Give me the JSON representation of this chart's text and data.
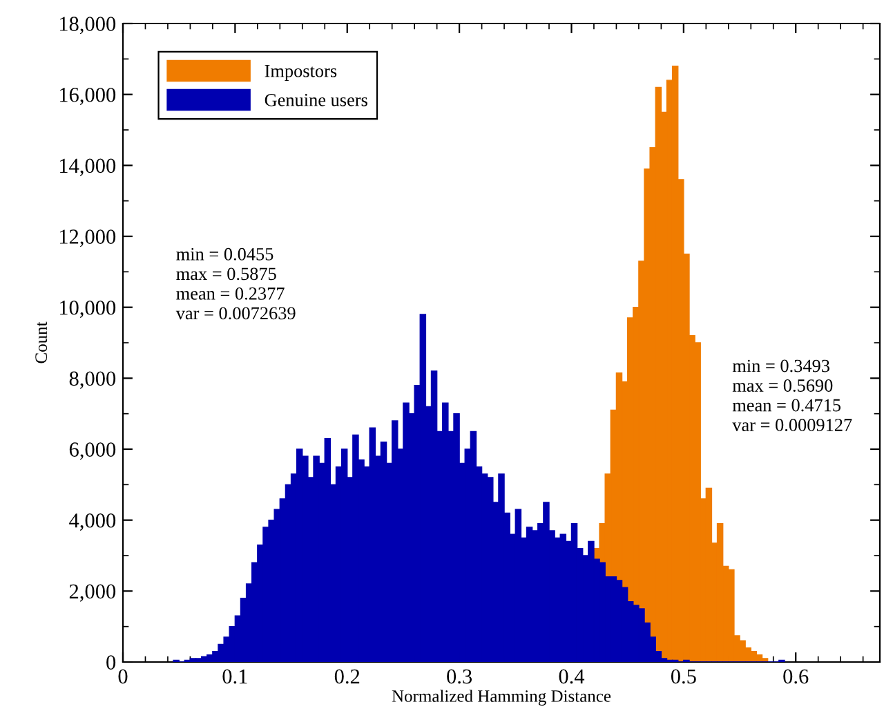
{
  "chart_data": {
    "type": "histogram",
    "xlabel": "Normalized Hamming Distance",
    "ylabel": "Count",
    "xlim": [
      0,
      0.675
    ],
    "ylim": [
      0,
      18000
    ],
    "xticks": [
      0,
      {
        "value": 0.02,
        "label": null
      },
      {
        "value": 0.04,
        "label": null
      },
      {
        "value": 0.06,
        "label": null
      },
      {
        "value": 0.08,
        "label": null
      },
      0.1,
      {
        "value": 0.12,
        "label": null
      },
      {
        "value": 0.14,
        "label": null
      },
      {
        "value": 0.16,
        "label": null
      },
      {
        "value": 0.18,
        "label": null
      },
      0.2,
      {
        "value": 0.22,
        "label": null
      },
      {
        "value": 0.24,
        "label": null
      },
      {
        "value": 0.26,
        "label": null
      },
      {
        "value": 0.28,
        "label": null
      },
      0.3,
      {
        "value": 0.32,
        "label": null
      },
      {
        "value": 0.34,
        "label": null
      },
      {
        "value": 0.36,
        "label": null
      },
      {
        "value": 0.38,
        "label": null
      },
      0.4,
      {
        "value": 0.42,
        "label": null
      },
      {
        "value": 0.44,
        "label": null
      },
      {
        "value": 0.46,
        "label": null
      },
      {
        "value": 0.48,
        "label": null
      },
      0.5,
      {
        "value": 0.52,
        "label": null
      },
      {
        "value": 0.54,
        "label": null
      },
      {
        "value": 0.56,
        "label": null
      },
      {
        "value": 0.58,
        "label": null
      },
      0.6,
      {
        "value": 0.62,
        "label": null
      },
      {
        "value": 0.64,
        "label": null
      },
      {
        "value": 0.66,
        "label": null
      }
    ],
    "yticks": [
      0,
      {
        "value": 1000,
        "label": null
      },
      {
        "value": 2000,
        "label": "2,000"
      },
      {
        "value": 3000,
        "label": null
      },
      {
        "value": 4000,
        "label": "4,000"
      },
      {
        "value": 5000,
        "label": null
      },
      {
        "value": 6000,
        "label": "6,000"
      },
      {
        "value": 7000,
        "label": null
      },
      {
        "value": 8000,
        "label": "8,000"
      },
      {
        "value": 9000,
        "label": null
      },
      {
        "value": 10000,
        "label": "10,000"
      },
      {
        "value": 11000,
        "label": null
      },
      {
        "value": 12000,
        "label": "12,000"
      },
      {
        "value": 13000,
        "label": null
      },
      {
        "value": 14000,
        "label": "14,000"
      },
      {
        "value": 15000,
        "label": null
      },
      {
        "value": 16000,
        "label": "16,000"
      },
      {
        "value": 17000,
        "label": null
      },
      {
        "value": 18000,
        "label": "18,000"
      }
    ],
    "grid": false,
    "legend": "top left",
    "bins": [
      0.045,
      0.05,
      0.055,
      0.06,
      0.065,
      0.07,
      0.075,
      0.08,
      0.085,
      0.09,
      0.095,
      0.1,
      0.105,
      0.11,
      0.115,
      0.12,
      0.125,
      0.13,
      0.135,
      0.14,
      0.145,
      0.15,
      0.155,
      0.16,
      0.165,
      0.17,
      0.175,
      0.18,
      0.185,
      0.19,
      0.195,
      0.2,
      0.205,
      0.21,
      0.215,
      0.22,
      0.225,
      0.23,
      0.235,
      0.24,
      0.245,
      0.25,
      0.255,
      0.26,
      0.265,
      0.27,
      0.275,
      0.28,
      0.285,
      0.29,
      0.295,
      0.3,
      0.305,
      0.31,
      0.315,
      0.32,
      0.325,
      0.33,
      0.335,
      0.34,
      0.345,
      0.35,
      0.355,
      0.36,
      0.365,
      0.37,
      0.375,
      0.38,
      0.385,
      0.39,
      0.395,
      0.4,
      0.405,
      0.41,
      0.415,
      0.42,
      0.425,
      0.43,
      0.435,
      0.44,
      0.445,
      0.45,
      0.455,
      0.46,
      0.465,
      0.47,
      0.475,
      0.48,
      0.485,
      0.49,
      0.495,
      0.5,
      0.505,
      0.51,
      0.515,
      0.52,
      0.525,
      0.53,
      0.535,
      0.54,
      0.545,
      0.55,
      0.555,
      0.56,
      0.565,
      0.57,
      0.575,
      0.58,
      0.585,
      0.59
    ],
    "series": [
      {
        "name": "Impostors",
        "color": "#f07c00",
        "values": [
          null,
          null,
          null,
          null,
          null,
          null,
          null,
          null,
          null,
          null,
          null,
          null,
          null,
          null,
          null,
          null,
          null,
          null,
          null,
          null,
          null,
          null,
          null,
          null,
          null,
          null,
          null,
          null,
          null,
          null,
          null,
          null,
          null,
          null,
          null,
          null,
          null,
          null,
          null,
          null,
          null,
          null,
          null,
          null,
          null,
          null,
          null,
          null,
          null,
          null,
          null,
          null,
          null,
          null,
          null,
          null,
          null,
          null,
          null,
          null,
          null,
          null,
          null,
          null,
          null,
          null,
          null,
          null,
          null,
          null,
          null,
          null,
          null,
          null,
          null,
          3200,
          3900,
          5300,
          7100,
          8150,
          7900,
          9700,
          10000,
          11300,
          13900,
          14500,
          16200,
          15500,
          16400,
          16800,
          13600,
          11500,
          9200,
          9000,
          4600,
          4900,
          3350,
          3900,
          2700,
          2600,
          740,
          600,
          400,
          300,
          200,
          100,
          null,
          null,
          null
        ]
      },
      {
        "name": "Genuine users",
        "color": "#0000b0",
        "values": [
          50,
          0,
          50,
          100,
          100,
          150,
          200,
          300,
          500,
          700,
          1000,
          1300,
          1800,
          2200,
          2800,
          3300,
          3800,
          4000,
          4300,
          4600,
          5000,
          5300,
          6000,
          5800,
          5200,
          5800,
          5600,
          6300,
          5000,
          5500,
          6000,
          5200,
          6400,
          5700,
          5500,
          6600,
          5800,
          6200,
          5600,
          6800,
          6000,
          7300,
          7000,
          7800,
          9800,
          7200,
          8200,
          6500,
          7300,
          6500,
          7000,
          5600,
          6000,
          6500,
          5500,
          5300,
          5200,
          4500,
          5300,
          4200,
          3600,
          4300,
          3500,
          3800,
          3700,
          3900,
          4500,
          3700,
          3500,
          3600,
          3400,
          3900,
          3200,
          3000,
          3400,
          2900,
          2800,
          2400,
          2400,
          2300,
          2100,
          1700,
          1600,
          1500,
          1100,
          700,
          300,
          100,
          50,
          50,
          0,
          50,
          0,
          0,
          0,
          0,
          0,
          0,
          0,
          0,
          0,
          0,
          0,
          0,
          0,
          0,
          0,
          0,
          50
        ]
      }
    ],
    "annotations": [
      "min = 0.0455\nmax = 0.5875\nmean = 0.2377\nvar = 0.0072639",
      "min = 0.3493\nmax = 0.5690\nmean = 0.4715\nvar = 0.0009127"
    ]
  }
}
